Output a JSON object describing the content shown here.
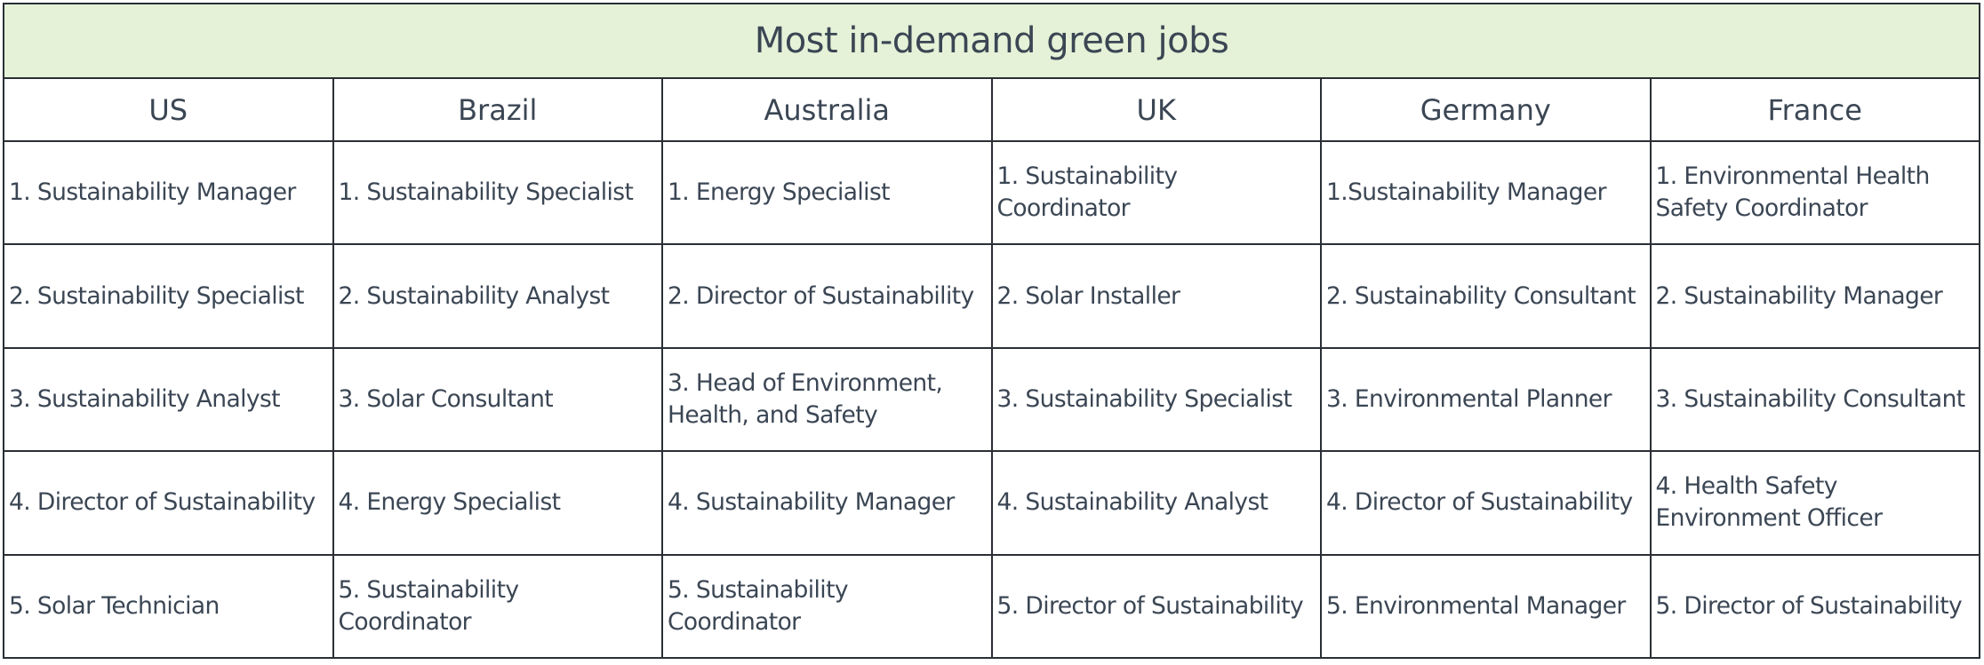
{
  "title": "Most in-demand green jobs",
  "columns": [
    "US",
    "Brazil",
    "Australia",
    "UK",
    "Germany",
    "France"
  ],
  "rows": [
    [
      "1. Sustainability Manager",
      "1. Sustainability Specialist",
      "1. Energy Specialist",
      "1. Sustainability Coordinator",
      "1.Sustainability Manager",
      "1. Environmental Health Safety Coordinator"
    ],
    [
      "2. Sustainability Specialist",
      "2. Sustainability Analyst",
      "2. Director of Sustainability",
      "2. Solar Installer",
      "2. Sustainability Consultant",
      "2. Sustainability Manager"
    ],
    [
      "3. Sustainability Analyst",
      "3. Solar Consultant",
      "3. Head of Environment, Health, and Safety",
      "3. Sustainability Specialist",
      "3. Environmental Planner",
      "3. Sustainability Consultant"
    ],
    [
      "4. Director of Sustainability",
      "4. Energy Specialist",
      "4. Sustainability Manager",
      "4. Sustainability Analyst",
      "4. Director of Sustainability",
      "4. Health Safety Environment Officer"
    ],
    [
      "5. Solar Technician",
      "5. Sustainability Coordinator",
      "5. Sustainability Coordinator",
      "5. Director of Sustainability",
      "5. Environmental Manager",
      "5. Director of Sustainability"
    ]
  ],
  "colors": {
    "title_background": "#e5f2d8",
    "border": "#2a2f35",
    "text": "#3b4654"
  }
}
